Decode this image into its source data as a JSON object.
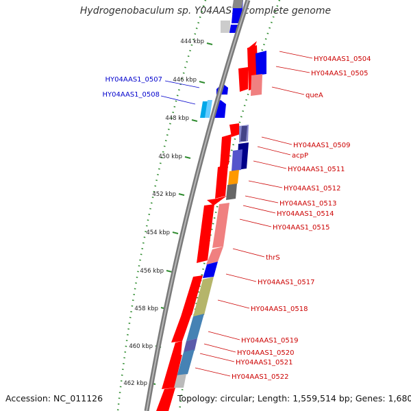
{
  "title": "Hydrogenobaculum sp. Y04AAS1, complete genome",
  "footer": {
    "accession": "Accession: NC_011126",
    "info": "Topology: circular; Length: 1,559,514 bp; Genes: 1,680"
  },
  "colors": {
    "forward_label": "#0000cc",
    "reverse_label": "#cc0000",
    "backbone": "#7a7a7a",
    "dotted_ring": "#2e8b2e"
  },
  "ticks": [
    "444 kbp",
    "446 kbp",
    "448 kbp",
    "450 kbp",
    "452 kbp",
    "454 kbp",
    "456 kbp",
    "458 kbp",
    "460 kbp",
    "462 kbp"
  ],
  "forward_labels": [
    "HY04AAS1_0507",
    "HY04AAS1_0508"
  ],
  "reverse_labels": [
    "HY04AAS1_0504",
    "HY04AAS1_0505",
    "queA",
    "HY04AAS1_0509",
    "acpP",
    "HY04AAS1_0511",
    "HY04AAS1_0512",
    "HY04AAS1_0513",
    "HY04AAS1_0514",
    "HY04AAS1_0515",
    "thrS",
    "HY04AAS1_0517",
    "HY04AAS1_0518",
    "HY04AAS1_0519",
    "HY04AAS1_0520",
    "HY04AAS1_0521",
    "HY04AAS1_0522"
  ]
}
